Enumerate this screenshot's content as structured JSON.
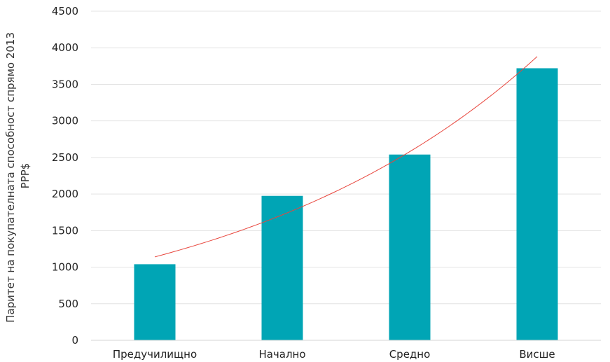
{
  "chart_data": {
    "type": "bar",
    "title": "",
    "xlabel": "",
    "ylabel_lines": [
      "Паритет на покупателната способност спрямо 2013",
      "PPP$"
    ],
    "categories": [
      "Предучилищно",
      "Начално",
      "Средно",
      "Висше"
    ],
    "values": [
      1040,
      1975,
      2540,
      3720
    ],
    "ylim": [
      0,
      4500
    ],
    "yticks": [
      0,
      500,
      1000,
      1500,
      2000,
      2500,
      3000,
      3500,
      4000,
      4500
    ],
    "grid": true,
    "legend": "none",
    "trendline": {
      "type": "exponential",
      "start_value": 1140,
      "end_value": 3880
    },
    "colors": {
      "bar": "#00A5B5",
      "trendline": "#E8453C",
      "grid": "#E3E3E3",
      "axis": "#D6D6D6"
    }
  }
}
